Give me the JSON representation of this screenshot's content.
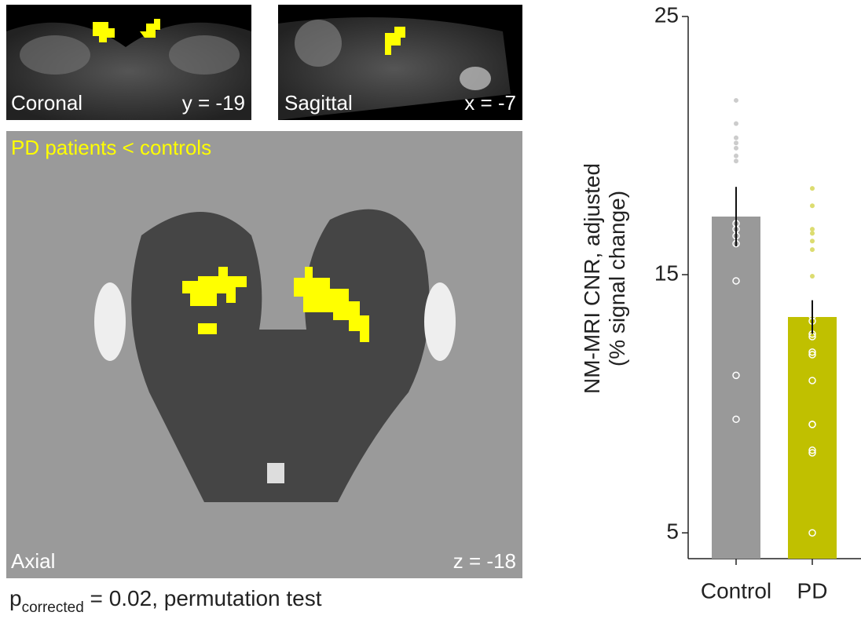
{
  "images": {
    "coronal": {
      "label": "Coronal",
      "coord": "y = -19"
    },
    "sagittal": {
      "label": "Sagittal",
      "coord": "x = -7"
    },
    "axial": {
      "label": "Axial",
      "coord": "z = -18",
      "contrast": "PD patients < controls"
    },
    "caption": {
      "p": "p",
      "sub": "corrected",
      "rest": " = 0.02, permutation test"
    }
  },
  "chart_data": {
    "type": "bar",
    "ylabel": [
      "NM-MRI CNR, adjusted",
      "(% signal change)"
    ],
    "categories": [
      "Control",
      "PD"
    ],
    "values": [
      17.25,
      13.36
    ],
    "errors": [
      1.15,
      0.65
    ],
    "colors": [
      "#999999",
      "#c0c000"
    ],
    "point_colors": [
      "#cccccc",
      "#dcdc70"
    ],
    "points_filled": [
      [
        21.75,
        20.85,
        20.3,
        20.1,
        19.9,
        19.6,
        19.4
      ],
      [
        18.34,
        17.67,
        16.76,
        16.6,
        16.3,
        15.97,
        14.94
      ]
    ],
    "points_open": [
      [
        16.98,
        16.76,
        16.5,
        16.2,
        14.76,
        11.1,
        9.4
      ],
      [
        13.4,
        13.2,
        12.7,
        12.6,
        12.0,
        11.9,
        10.9,
        9.2,
        9.2,
        8.2,
        8.1,
        5.0
      ]
    ],
    "ylim": [
      4,
      25
    ],
    "yticks": [
      5,
      15,
      25
    ]
  }
}
